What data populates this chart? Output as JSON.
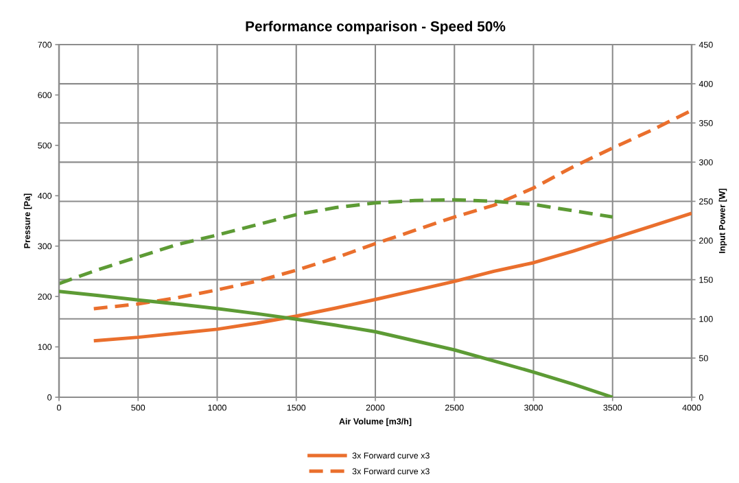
{
  "chart_data": {
    "type": "line",
    "title": "Performance comparison - Speed 50%",
    "xlabel": "Air Volume [m3/h]",
    "ylabel": "Pressure [Pa]",
    "y2label": "Input Power [W]",
    "xlim": [
      0,
      4000
    ],
    "xticks": [
      0,
      500,
      1000,
      1500,
      2000,
      2500,
      3000,
      3500,
      4000
    ],
    "ylim": [
      0,
      700
    ],
    "yticks": [
      0,
      100,
      200,
      300,
      400,
      500,
      600,
      700
    ],
    "y2lim": [
      0,
      450
    ],
    "y2ticks": [
      0,
      50,
      100,
      150,
      200,
      250,
      300,
      350,
      400,
      450
    ],
    "grid": true,
    "legend": "bottom",
    "marker": "none",
    "series": [
      {
        "name": "3x Forward curve x3",
        "color": "#ea6f2d",
        "line_style": "solid",
        "x": [
          220,
          500,
          750,
          1000,
          1250,
          1500,
          1750,
          2000,
          2250,
          2500,
          2750,
          3000,
          3250,
          3500,
          3750,
          4000
        ],
        "values": [
          112,
          119,
          127,
          135,
          147,
          161,
          177,
          194,
          212,
          230,
          250,
          267,
          290,
          315,
          340,
          365
        ]
      },
      {
        "name": "3x Forward curve x3",
        "color": "#ea6f2d",
        "line_style": "dashed",
        "axis": "y2",
        "x": [
          220,
          500,
          750,
          1000,
          1250,
          1500,
          1750,
          2000,
          2250,
          2500,
          2750,
          3000,
          3250,
          3500,
          3750,
          4000
        ],
        "values": [
          113,
          119,
          127,
          137,
          148,
          162,
          178,
          196,
          213,
          230,
          245,
          267,
          294,
          318,
          341,
          366
        ]
      },
      {
        "color": "#5d9b35",
        "line_style": "solid",
        "x": [
          0,
          250,
          500,
          750,
          1000,
          1250,
          1500,
          1750,
          2000,
          2250,
          2500,
          2750,
          3000,
          3250,
          3500
        ],
        "values": [
          210,
          202,
          193,
          185,
          176,
          166,
          155,
          143,
          130,
          112,
          94,
          72,
          50,
          26,
          0
        ]
      },
      {
        "color": "#5d9b35",
        "line_style": "dashed",
        "axis": "y2",
        "x": [
          0,
          250,
          500,
          750,
          1000,
          1250,
          1500,
          1750,
          2000,
          2250,
          2500,
          2750,
          3000,
          3250,
          3500
        ],
        "values": [
          145,
          163,
          179,
          195,
          207,
          220,
          233,
          242,
          248,
          251,
          252,
          250,
          246,
          238,
          230
        ]
      }
    ]
  }
}
